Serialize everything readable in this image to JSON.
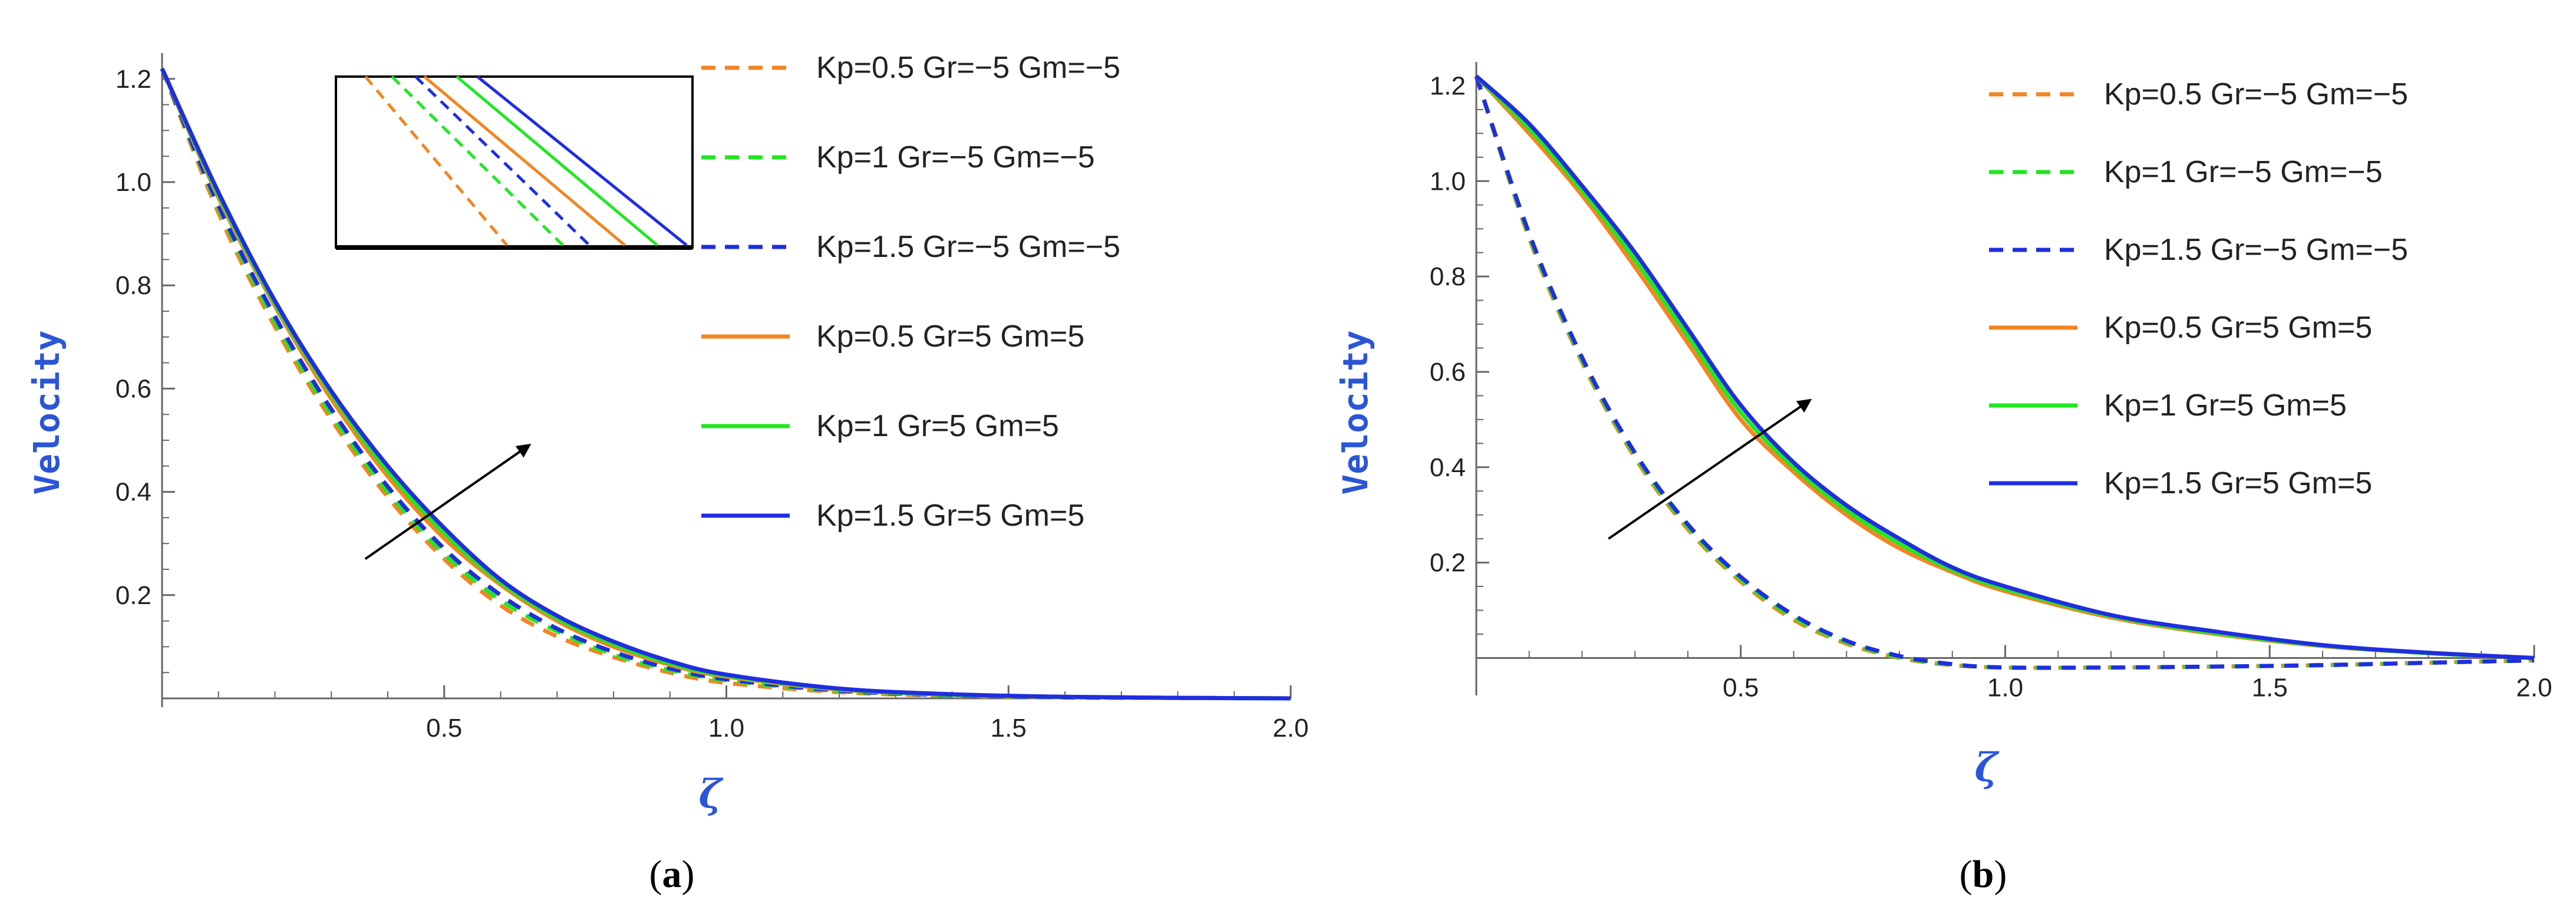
{
  "figure": {
    "axis_title_color": "#2b55d8",
    "axis_color": "#666666"
  },
  "chart_data": [
    {
      "type": "line",
      "panel": "a",
      "caption": {
        "open": "(",
        "letter": "a",
        "close": ")"
      },
      "xlabel": "ζ",
      "ylabel": "Velocity",
      "xlim": [
        0,
        2.0
      ],
      "ylim": [
        0,
        1.25
      ],
      "x_ticks": [
        0.5,
        1.0,
        1.5,
        2.0
      ],
      "x_tick_labels": [
        "0.5",
        "1.0",
        "1.5",
        "2.0"
      ],
      "y_ticks": [
        0.2,
        0.4,
        0.6,
        0.8,
        1.0,
        1.2
      ],
      "y_tick_labels": [
        "0.2",
        "0.4",
        "0.6",
        "0.8",
        "1.0",
        "1.2"
      ],
      "legend_position": "top-right",
      "annotation": {
        "type": "arrow",
        "from": [
          0.36,
          0.27
        ],
        "to": [
          0.65,
          0.49
        ]
      },
      "inset": {
        "description": "zoomed view of curves",
        "xlim": [
          0.36,
          0.49
        ],
        "ylim": [
          0.5,
          0.62
        ]
      },
      "x": [
        0,
        0.1,
        0.2,
        0.3,
        0.4,
        0.5,
        0.6,
        0.7,
        0.8,
        0.9,
        1.0,
        1.2,
        1.4,
        1.6,
        1.8,
        2.0
      ],
      "series": [
        {
          "name": "Kp=0.5 Gr=−5 Gm=−5",
          "color": "#f28522",
          "dash": "dashed",
          "values": [
            1.22,
            0.94,
            0.72,
            0.54,
            0.39,
            0.27,
            0.18,
            0.12,
            0.08,
            0.05,
            0.03,
            0.012,
            0.005,
            0.002,
            0.001,
            0.0
          ]
        },
        {
          "name": "Kp=1 Gr=−5 Gm=−5",
          "color": "#22e622",
          "dash": "dashed",
          "values": [
            1.22,
            0.95,
            0.73,
            0.55,
            0.4,
            0.28,
            0.19,
            0.13,
            0.085,
            0.055,
            0.035,
            0.014,
            0.006,
            0.002,
            0.001,
            0.0
          ]
        },
        {
          "name": "Kp=1.5 Gr=−5 Gm=−5",
          "color": "#1f2ee0",
          "dash": "dashed",
          "values": [
            1.22,
            0.955,
            0.74,
            0.56,
            0.41,
            0.29,
            0.2,
            0.135,
            0.09,
            0.058,
            0.037,
            0.015,
            0.006,
            0.002,
            0.001,
            0.0
          ]
        },
        {
          "name": "Kp=0.5 Gr=5 Gm=5",
          "color": "#f28522",
          "dash": "solid",
          "values": [
            1.22,
            0.97,
            0.76,
            0.58,
            0.43,
            0.31,
            0.22,
            0.15,
            0.1,
            0.065,
            0.042,
            0.017,
            0.007,
            0.003,
            0.001,
            0.0
          ]
        },
        {
          "name": "Kp=1 Gr=5 Gm=5",
          "color": "#22e622",
          "dash": "solid",
          "values": [
            1.22,
            0.975,
            0.765,
            0.59,
            0.44,
            0.32,
            0.225,
            0.155,
            0.105,
            0.068,
            0.044,
            0.018,
            0.007,
            0.003,
            0.001,
            0.0
          ]
        },
        {
          "name": "Kp=1.5 Gr=5 Gm=5",
          "color": "#1f2ee0",
          "dash": "solid",
          "values": [
            1.22,
            0.98,
            0.77,
            0.595,
            0.45,
            0.33,
            0.23,
            0.16,
            0.11,
            0.072,
            0.046,
            0.019,
            0.008,
            0.003,
            0.001,
            0.0
          ]
        }
      ]
    },
    {
      "type": "line",
      "panel": "b",
      "caption": {
        "open": "(",
        "letter": "b",
        "close": ")"
      },
      "xlabel": "ζ",
      "ylabel": "Velocity",
      "xlim": [
        0,
        2.0
      ],
      "ylim": [
        -0.06,
        1.25
      ],
      "x_ticks": [
        0.5,
        1.0,
        1.5,
        2.0
      ],
      "x_tick_labels": [
        "0.5",
        "1.0",
        "1.5",
        "2.0"
      ],
      "y_ticks": [
        0.2,
        0.4,
        0.6,
        0.8,
        1.0,
        1.2
      ],
      "y_tick_labels": [
        "0.2",
        "0.4",
        "0.6",
        "0.8",
        "1.0",
        "1.2"
      ],
      "legend_position": "top-right",
      "annotation": {
        "type": "arrow",
        "from": [
          0.25,
          0.25
        ],
        "to": [
          0.63,
          0.54
        ]
      },
      "x": [
        0,
        0.1,
        0.2,
        0.3,
        0.4,
        0.5,
        0.6,
        0.7,
        0.8,
        0.9,
        1.0,
        1.2,
        1.4,
        1.6,
        1.8,
        2.0
      ],
      "series": [
        {
          "name": "Kp=0.5 Gr=−5 Gm=−5",
          "color": "#f28522",
          "dash": "dashed",
          "values": [
            1.22,
            0.88,
            0.62,
            0.42,
            0.27,
            0.16,
            0.08,
            0.03,
            0.0,
            -0.015,
            -0.02,
            -0.02,
            -0.018,
            -0.015,
            -0.01,
            -0.005
          ]
        },
        {
          "name": "Kp=1 Gr=−5 Gm=−5",
          "color": "#22e622",
          "dash": "dashed",
          "values": [
            1.22,
            0.885,
            0.625,
            0.425,
            0.275,
            0.165,
            0.085,
            0.033,
            0.002,
            -0.014,
            -0.02,
            -0.02,
            -0.018,
            -0.015,
            -0.01,
            -0.005
          ]
        },
        {
          "name": "Kp=1.5 Gr=−5 Gm=−5",
          "color": "#1f2ee0",
          "dash": "dashed",
          "values": [
            1.22,
            0.89,
            0.63,
            0.43,
            0.28,
            0.17,
            0.09,
            0.036,
            0.004,
            -0.013,
            -0.02,
            -0.02,
            -0.018,
            -0.015,
            -0.01,
            -0.005
          ]
        },
        {
          "name": "Kp=0.5 Gr=5 Gm=5",
          "color": "#f28522",
          "dash": "solid",
          "values": [
            1.22,
            1.1,
            0.97,
            0.82,
            0.66,
            0.5,
            0.39,
            0.3,
            0.23,
            0.18,
            0.14,
            0.085,
            0.05,
            0.025,
            0.01,
            0.0
          ]
        },
        {
          "name": "Kp=1 Gr=5 Gm=5",
          "color": "#22e622",
          "dash": "solid",
          "values": [
            1.22,
            1.11,
            0.98,
            0.835,
            0.675,
            0.515,
            0.4,
            0.31,
            0.24,
            0.185,
            0.145,
            0.088,
            0.052,
            0.026,
            0.01,
            0.0
          ]
        },
        {
          "name": "Kp=1.5 Gr=5 Gm=5",
          "color": "#1f2ee0",
          "dash": "solid",
          "values": [
            1.22,
            1.12,
            0.99,
            0.85,
            0.69,
            0.53,
            0.41,
            0.32,
            0.25,
            0.19,
            0.15,
            0.09,
            0.055,
            0.027,
            0.011,
            0.0
          ]
        }
      ]
    }
  ]
}
